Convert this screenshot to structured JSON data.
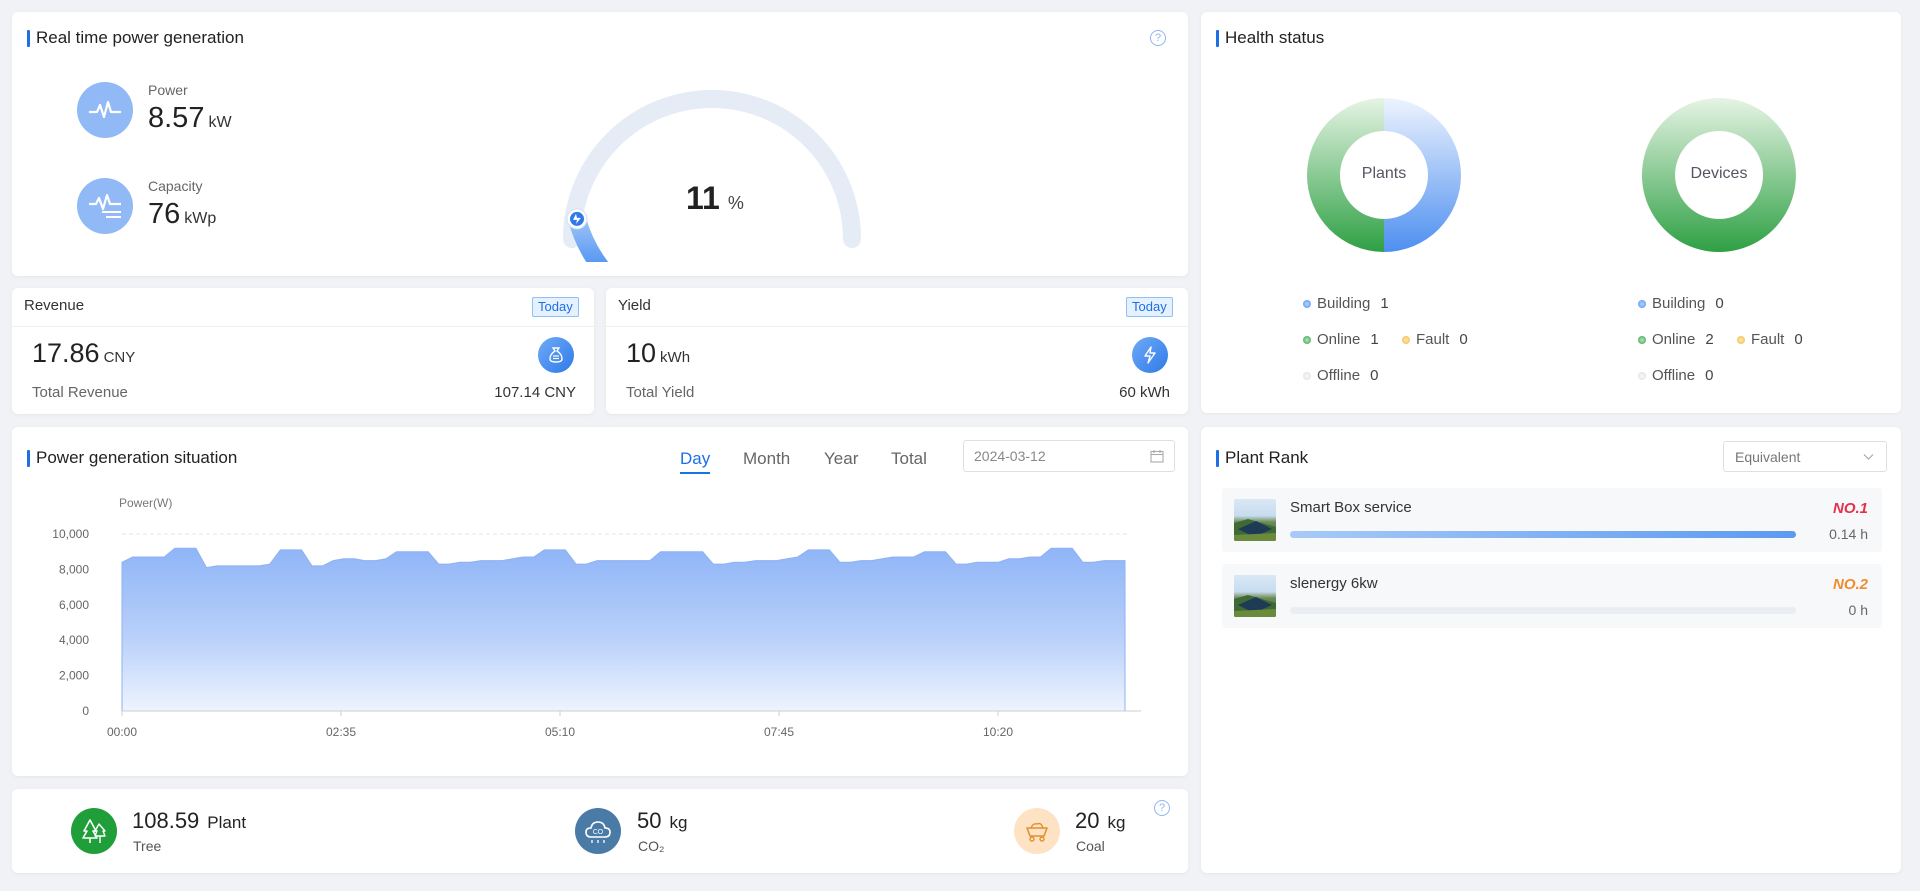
{
  "realtime": {
    "title": "Real time power generation",
    "power_label": "Power",
    "power_value": "8.57",
    "power_unit": "kW",
    "capacity_label": "Capacity",
    "capacity_value": "76",
    "capacity_unit": "kWp",
    "gauge_percent": "11",
    "gauge_unit": "%",
    "gauge_fraction": 0.11
  },
  "revenue": {
    "title": "Revenue",
    "badge": "Today",
    "value": "17.86",
    "unit": "CNY",
    "total_label": "Total Revenue",
    "total_value": "107.14 CNY"
  },
  "yield": {
    "title": "Yield",
    "badge": "Today",
    "value": "10",
    "unit": "kWh",
    "total_label": "Total Yield",
    "total_value": "60 kWh"
  },
  "situation": {
    "title": "Power generation situation",
    "tabs": [
      "Day",
      "Month",
      "Year",
      "Total"
    ],
    "active_tab": "Day",
    "date_value": "2024-03-12"
  },
  "chart_data": {
    "type": "area",
    "ylabel": "Power(W)",
    "ylim": [
      0,
      10000
    ],
    "yticks": [
      "10,000",
      "8,000",
      "6,000",
      "4,000",
      "2,000",
      "0"
    ],
    "xticks": [
      "00:00",
      "02:35",
      "05:10",
      "07:45",
      "10:20"
    ],
    "series": [
      {
        "values": [
          8400,
          8700,
          8700,
          8700,
          8700,
          9200,
          9200,
          9200,
          8100,
          8200,
          8200,
          8200,
          8200,
          8200,
          8300,
          9100,
          9100,
          9100,
          8200,
          8200,
          8500,
          8600,
          8600,
          8500,
          8500,
          8600,
          9000,
          9000,
          9000,
          9000,
          8300,
          8300,
          8400,
          8400,
          8500,
          8500,
          8500,
          8600,
          8700,
          8700,
          9100,
          9100,
          9100,
          8300,
          8300,
          8500,
          8500,
          8500,
          8500,
          8500,
          8500,
          9000,
          9000,
          9000,
          9000,
          9000,
          8300,
          8300,
          8400,
          8400,
          8500,
          8500,
          8500,
          8600,
          8700,
          9100,
          9100,
          9100,
          8400,
          8400,
          8500,
          8500,
          8600,
          8700,
          8700,
          8700,
          9000,
          9000,
          9000,
          8300,
          8300,
          8400,
          8400,
          8400,
          8600,
          8600,
          8700,
          8700,
          9200,
          9200,
          9200,
          8400,
          8400,
          8500,
          8500,
          8500
        ]
      }
    ]
  },
  "health": {
    "title": "Health status",
    "plants_label": "Plants",
    "devices_label": "Devices",
    "plants": {
      "building_label": "Building",
      "building": "1",
      "online_label": "Online",
      "online": "1",
      "fault_label": "Fault",
      "fault": "0",
      "offline_label": "Offline",
      "offline": "0"
    },
    "devices": {
      "building_label": "Building",
      "building": "0",
      "online_label": "Online",
      "online": "2",
      "fault_label": "Fault",
      "fault": "0",
      "offline_label": "Offline",
      "offline": "0"
    }
  },
  "rank": {
    "title": "Plant Rank",
    "select_value": "Equivalent",
    "items": [
      {
        "name": "Smart Box service",
        "rank": "NO.1",
        "value": "0.14 h",
        "fraction": 1.0,
        "rank_color": "#e6304a"
      },
      {
        "name": "slenergy 6kw",
        "rank": "NO.2",
        "value": "0 h",
        "fraction": 0.0,
        "rank_color": "#f08c2e"
      }
    ]
  },
  "env": {
    "tree_value": "108.59",
    "tree_unit": "Plant",
    "tree_label": "Tree",
    "co2_value": "50",
    "co2_unit": "kg",
    "co2_label": "CO₂",
    "coal_value": "20",
    "coal_unit": "kg",
    "coal_label": "Coal"
  }
}
